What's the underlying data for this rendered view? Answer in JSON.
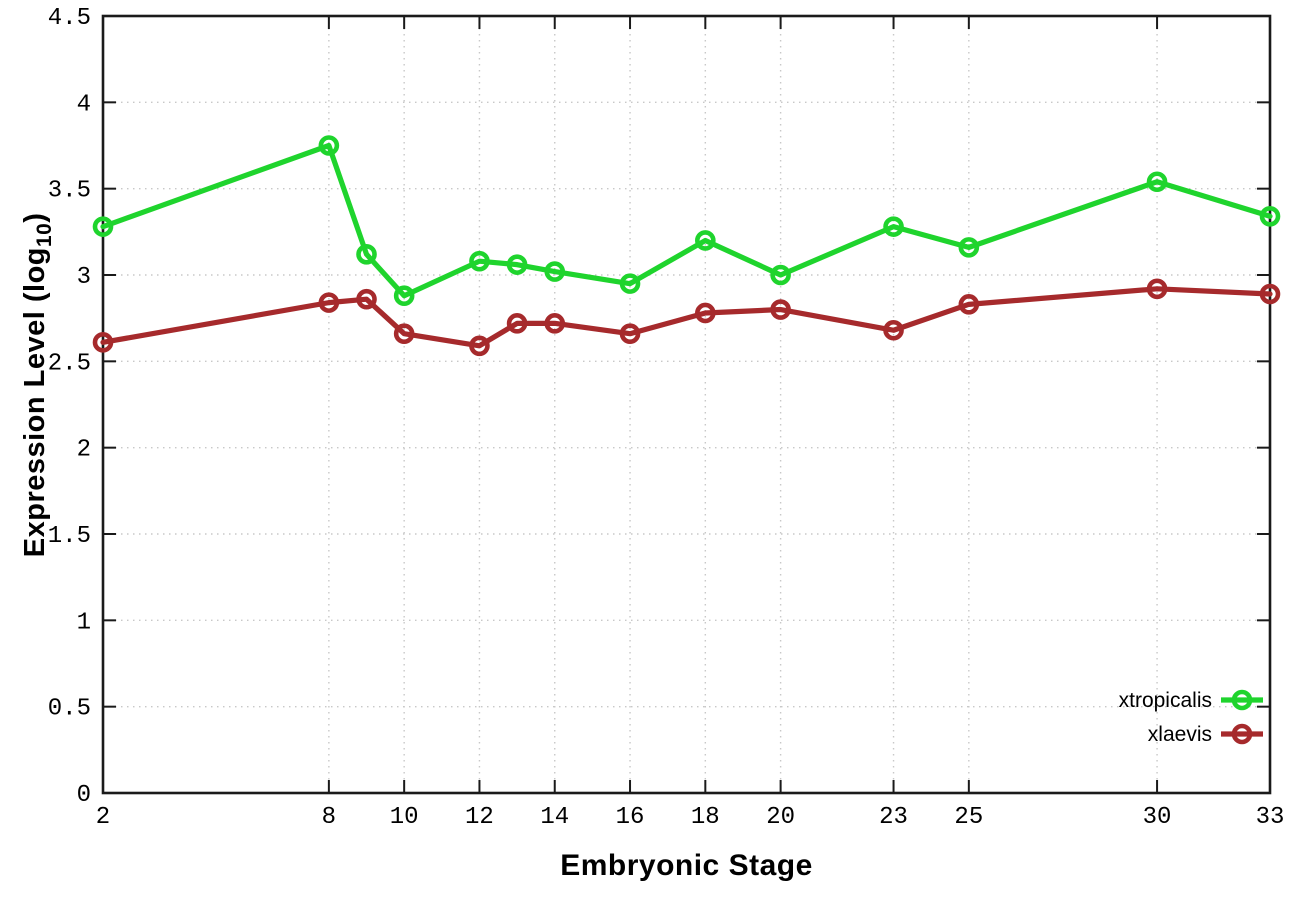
{
  "chart_data": {
    "type": "line",
    "title": "",
    "xlabel": "Embryonic Stage",
    "ylabel_prefix": "Expression Level (log",
    "ylabel_sub": "10",
    "ylabel_suffix": ")",
    "xlim": [
      2,
      33
    ],
    "ylim": [
      0,
      4.5
    ],
    "grid": true,
    "legend_position": "inside-bottom-right",
    "xticks": [
      2,
      8,
      10,
      12,
      14,
      16,
      18,
      20,
      23,
      25,
      30,
      33
    ],
    "xtick_labels": [
      "2",
      "8",
      "10",
      "12",
      "14",
      "16",
      "18",
      "20",
      "23",
      "25",
      "30",
      "33"
    ],
    "yticks": [
      0,
      0.5,
      1,
      1.5,
      2,
      2.5,
      3,
      3.5,
      4,
      4.5
    ],
    "ytick_labels": [
      "0",
      "0.5",
      "1",
      "1.5",
      "2",
      "2.5",
      "3",
      "3.5",
      "4",
      "4.5"
    ],
    "x": [
      2,
      8,
      9,
      10,
      12,
      13,
      14,
      16,
      18,
      20,
      23,
      25,
      30,
      33
    ],
    "series": [
      {
        "name": "xtropicalis",
        "color": "#1fd42d",
        "marker": "open-circle",
        "values": [
          3.28,
          3.75,
          3.12,
          2.88,
          3.08,
          3.06,
          3.02,
          2.95,
          3.2,
          3.0,
          3.28,
          3.16,
          3.54,
          3.34
        ]
      },
      {
        "name": "xlaevis",
        "color": "#a62a2c",
        "marker": "open-circle",
        "values": [
          2.61,
          2.84,
          2.86,
          2.66,
          2.59,
          2.72,
          2.72,
          2.66,
          2.78,
          2.8,
          2.68,
          2.83,
          2.92,
          2.89
        ]
      }
    ],
    "colors": {
      "border": "#1a1a1a",
      "grid": "#c8c8c8",
      "background": "#ffffff",
      "text": "#000000"
    }
  }
}
